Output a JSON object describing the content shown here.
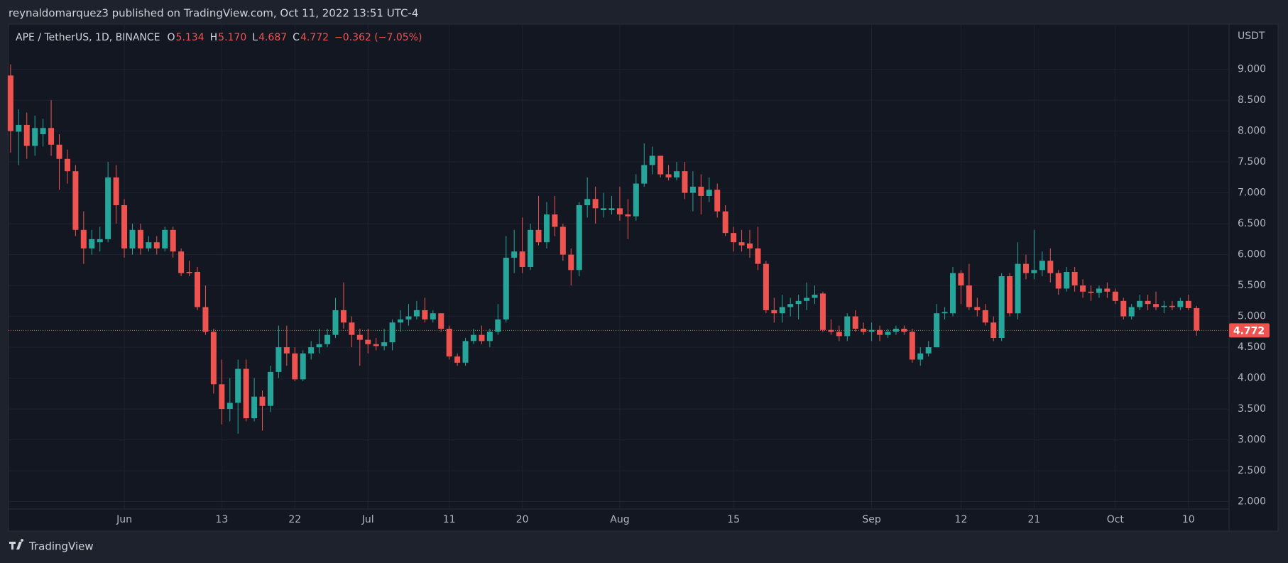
{
  "header": "reynaldomarquez3 published on TradingView.com, Oct 11, 2022 13:51 UTC-4",
  "footer": "TradingView",
  "chart_data": {
    "type": "candlestick",
    "title": "APE / TetherUS, 1D, BINANCE",
    "ohlc_legend": [
      {
        "label": "O",
        "value": "5.134"
      },
      {
        "label": "H",
        "value": "5.170"
      },
      {
        "label": "L",
        "value": "4.687"
      },
      {
        "label": "C",
        "value": "4.772"
      }
    ],
    "change": "−0.362 (−7.05%)",
    "y_unit": "USDT",
    "up_color": "#26a69a",
    "down_color": "#ef5350",
    "grid": true,
    "last_price": {
      "value": 4.772,
      "label": "4.772"
    },
    "xlim": [
      "2022-05-17T18:00Z",
      "2022-10-15T00:00Z"
    ],
    "ylim": [
      1.88,
      9.72
    ],
    "yticks": [
      {
        "value": 2,
        "label": "2.000"
      },
      {
        "value": 2.5,
        "label": "2.500"
      },
      {
        "value": 3,
        "label": "3.000"
      },
      {
        "value": 3.5,
        "label": "3.500"
      },
      {
        "value": 4,
        "label": "4.000"
      },
      {
        "value": 4.5,
        "label": "4.500"
      },
      {
        "value": 5,
        "label": "5.000"
      },
      {
        "value": 5.5,
        "label": "5.500"
      },
      {
        "value": 6,
        "label": "6.000"
      },
      {
        "value": 6.5,
        "label": "6.500"
      },
      {
        "value": 7,
        "label": "7.000"
      },
      {
        "value": 7.5,
        "label": "7.500"
      },
      {
        "value": 8,
        "label": "8.000"
      },
      {
        "value": 8.5,
        "label": "8.500"
      },
      {
        "value": 9,
        "label": "9.000"
      }
    ],
    "xticks": [
      {
        "value": "2022-06-01",
        "label": "Jun"
      },
      {
        "value": "2022-06-13",
        "label": "13"
      },
      {
        "value": "2022-06-22",
        "label": "22"
      },
      {
        "value": "2022-07-01",
        "label": "Jul"
      },
      {
        "value": "2022-07-11",
        "label": "11"
      },
      {
        "value": "2022-07-20",
        "label": "20"
      },
      {
        "value": "2022-08-01",
        "label": "Aug"
      },
      {
        "value": "2022-08-15",
        "label": "15"
      },
      {
        "value": "2022-09-01",
        "label": "Sep"
      },
      {
        "value": "2022-09-12",
        "label": "12"
      },
      {
        "value": "2022-09-21",
        "label": "21"
      },
      {
        "value": "2022-10-01",
        "label": "Oct"
      },
      {
        "value": "2022-10-10",
        "label": "10"
      }
    ],
    "x": [
      "2022-05-18",
      "2022-05-19",
      "2022-05-20",
      "2022-05-21",
      "2022-05-22",
      "2022-05-23",
      "2022-05-24",
      "2022-05-25",
      "2022-05-26",
      "2022-05-27",
      "2022-05-28",
      "2022-05-29",
      "2022-05-30",
      "2022-05-31",
      "2022-06-01",
      "2022-06-02",
      "2022-06-03",
      "2022-06-04",
      "2022-06-05",
      "2022-06-06",
      "2022-06-07",
      "2022-06-08",
      "2022-06-09",
      "2022-06-10",
      "2022-06-11",
      "2022-06-12",
      "2022-06-13",
      "2022-06-14",
      "2022-06-15",
      "2022-06-16",
      "2022-06-17",
      "2022-06-18",
      "2022-06-19",
      "2022-06-20",
      "2022-06-21",
      "2022-06-22",
      "2022-06-23",
      "2022-06-24",
      "2022-06-25",
      "2022-06-26",
      "2022-06-27",
      "2022-06-28",
      "2022-06-29",
      "2022-06-30",
      "2022-07-01",
      "2022-07-02",
      "2022-07-03",
      "2022-07-04",
      "2022-07-05",
      "2022-07-06",
      "2022-07-07",
      "2022-07-08",
      "2022-07-09",
      "2022-07-10",
      "2022-07-11",
      "2022-07-12",
      "2022-07-13",
      "2022-07-14",
      "2022-07-15",
      "2022-07-16",
      "2022-07-17",
      "2022-07-18",
      "2022-07-19",
      "2022-07-20",
      "2022-07-21",
      "2022-07-22",
      "2022-07-23",
      "2022-07-24",
      "2022-07-25",
      "2022-07-26",
      "2022-07-27",
      "2022-07-28",
      "2022-07-29",
      "2022-07-30",
      "2022-07-31",
      "2022-08-01",
      "2022-08-02",
      "2022-08-03",
      "2022-08-04",
      "2022-08-05",
      "2022-08-06",
      "2022-08-07",
      "2022-08-08",
      "2022-08-09",
      "2022-08-10",
      "2022-08-11",
      "2022-08-12",
      "2022-08-13",
      "2022-08-14",
      "2022-08-15",
      "2022-08-16",
      "2022-08-17",
      "2022-08-18",
      "2022-08-19",
      "2022-08-20",
      "2022-08-21",
      "2022-08-22",
      "2022-08-23",
      "2022-08-24",
      "2022-08-25",
      "2022-08-26",
      "2022-08-27",
      "2022-08-28",
      "2022-08-29",
      "2022-08-30",
      "2022-08-31",
      "2022-09-01",
      "2022-09-02",
      "2022-09-03",
      "2022-09-04",
      "2022-09-05",
      "2022-09-06",
      "2022-09-07",
      "2022-09-08",
      "2022-09-09",
      "2022-09-10",
      "2022-09-11",
      "2022-09-12",
      "2022-09-13",
      "2022-09-14",
      "2022-09-15",
      "2022-09-16",
      "2022-09-17",
      "2022-09-18",
      "2022-09-19",
      "2022-09-20",
      "2022-09-21",
      "2022-09-22",
      "2022-09-23",
      "2022-09-24",
      "2022-09-25",
      "2022-09-26",
      "2022-09-27",
      "2022-09-28",
      "2022-09-29",
      "2022-09-30",
      "2022-10-01",
      "2022-10-02",
      "2022-10-03",
      "2022-10-04",
      "2022-10-05",
      "2022-10-06",
      "2022-10-07",
      "2022-10-08",
      "2022-10-09",
      "2022-10-10",
      "2022-10-11"
    ],
    "open": [
      8.9,
      7.99,
      8.1,
      7.76,
      7.95,
      8.05,
      7.78,
      7.55,
      7.35,
      6.4,
      6.1,
      6.2,
      6.25,
      7.25,
      6.8,
      6.1,
      6.4,
      6.1,
      6.2,
      6.1,
      6.4,
      6.05,
      5.72,
      5.72,
      5.15,
      4.75,
      3.9,
      3.5,
      3.6,
      4.15,
      3.35,
      3.7,
      3.55,
      4.1,
      4.5,
      4.4,
      3.98,
      4.4,
      4.5,
      4.55,
      4.7,
      5.1,
      4.9,
      4.7,
      4.62,
      4.55,
      4.52,
      4.58,
      4.9,
      4.95,
      5.0,
      5.1,
      4.95,
      5.05,
      4.8,
      4.35,
      4.25,
      4.6,
      4.7,
      4.6,
      4.75,
      4.95,
      5.95,
      6.05,
      5.8,
      6.4,
      6.2,
      6.65,
      6.45,
      6.0,
      5.75,
      6.8,
      6.9,
      6.72,
      6.72,
      6.75,
      6.65,
      6.62,
      7.15,
      7.45,
      7.6,
      7.3,
      7.25,
      7.35,
      7.0,
      7.1,
      6.95,
      7.05,
      6.7,
      6.35,
      6.2,
      6.18,
      6.1,
      5.85,
      5.1,
      5.05,
      5.15,
      5.2,
      5.25,
      5.3,
      5.37,
      4.78,
      4.75,
      4.68,
      5.0,
      4.8,
      4.75,
      4.78,
      4.7,
      4.75,
      4.8,
      4.75,
      4.3,
      4.4,
      4.5,
      5.05,
      5.05,
      5.7,
      5.5,
      5.15,
      5.1,
      4.9,
      4.65,
      5.65,
      5.05,
      5.85,
      5.7,
      5.75,
      5.9,
      5.7,
      5.45,
      5.72,
      5.5,
      5.4,
      5.38,
      5.45,
      5.4,
      5.25,
      5.0,
      5.15,
      5.25,
      5.2,
      5.15,
      5.17,
      5.15,
      5.25,
      5.134
    ],
    "high": [
      9.08,
      8.35,
      8.3,
      8.25,
      8.2,
      8.5,
      7.95,
      7.7,
      7.45,
      6.7,
      6.4,
      6.45,
      7.5,
      7.45,
      6.9,
      6.5,
      6.5,
      6.3,
      6.3,
      6.45,
      6.45,
      6.1,
      5.9,
      5.8,
      5.5,
      4.8,
      4.3,
      4.0,
      4.3,
      4.3,
      4.0,
      3.8,
      4.2,
      4.85,
      4.85,
      4.5,
      4.45,
      4.6,
      4.8,
      4.8,
      5.3,
      5.55,
      5.0,
      4.8,
      4.8,
      4.65,
      4.8,
      4.95,
      5.1,
      5.2,
      5.25,
      5.3,
      5.1,
      5.05,
      4.85,
      4.4,
      4.65,
      4.8,
      4.85,
      4.8,
      5.2,
      6.3,
      6.4,
      6.6,
      6.5,
      6.95,
      6.85,
      6.95,
      6.5,
      6.1,
      6.85,
      7.25,
      7.1,
      7.0,
      6.95,
      7.1,
      6.9,
      7.3,
      7.8,
      7.75,
      7.6,
      7.45,
      7.5,
      7.5,
      7.35,
      7.3,
      7.25,
      7.15,
      6.8,
      6.45,
      6.4,
      6.4,
      6.45,
      5.9,
      5.3,
      5.35,
      5.3,
      5.35,
      5.55,
      5.5,
      5.4,
      4.95,
      4.85,
      5.05,
      5.1,
      4.9,
      4.9,
      4.85,
      4.8,
      4.85,
      4.85,
      4.8,
      4.5,
      4.6,
      5.2,
      5.15,
      5.8,
      5.75,
      5.85,
      5.3,
      5.2,
      5.0,
      5.7,
      5.7,
      6.2,
      6.0,
      6.4,
      6.05,
      6.1,
      5.75,
      5.8,
      5.8,
      5.6,
      5.5,
      5.5,
      5.55,
      5.45,
      5.3,
      5.2,
      5.35,
      5.35,
      5.4,
      5.25,
      5.25,
      5.3,
      5.35,
      5.17
    ],
    "low": [
      7.65,
      7.45,
      7.55,
      7.6,
      7.75,
      7.6,
      7.05,
      7.15,
      6.3,
      5.85,
      6.0,
      6.05,
      6.2,
      6.5,
      5.95,
      6.0,
      6.0,
      6.05,
      6.0,
      6.05,
      5.95,
      5.65,
      5.65,
      5.1,
      4.7,
      3.75,
      3.25,
      3.3,
      3.1,
      3.3,
      3.3,
      3.15,
      3.45,
      4.0,
      4.2,
      3.95,
      3.95,
      4.3,
      4.4,
      4.5,
      4.65,
      4.8,
      4.5,
      4.2,
      4.4,
      4.45,
      4.45,
      4.45,
      4.75,
      4.85,
      4.95,
      4.9,
      4.9,
      4.75,
      4.3,
      4.2,
      4.2,
      4.55,
      4.55,
      4.5,
      4.7,
      4.9,
      5.7,
      5.7,
      5.75,
      6.15,
      6.1,
      6.3,
      5.9,
      5.5,
      5.65,
      6.6,
      6.5,
      6.6,
      6.65,
      6.55,
      6.25,
      6.55,
      7.1,
      7.3,
      7.25,
      7.2,
      7.2,
      6.9,
      6.7,
      6.65,
      6.85,
      6.6,
      6.3,
      6.05,
      6.05,
      5.95,
      5.75,
      5.05,
      4.9,
      4.9,
      5.0,
      4.95,
      5.1,
      5.2,
      4.75,
      4.7,
      4.6,
      4.6,
      4.75,
      4.7,
      4.6,
      4.6,
      4.65,
      4.7,
      4.7,
      4.25,
      4.2,
      4.35,
      4.5,
      4.95,
      5.0,
      5.2,
      5.1,
      5.0,
      4.85,
      4.6,
      4.6,
      5.0,
      4.95,
      5.6,
      5.6,
      5.65,
      5.55,
      5.35,
      5.4,
      5.4,
      5.3,
      5.25,
      5.3,
      5.3,
      5.2,
      4.95,
      4.95,
      5.1,
      5.1,
      5.1,
      5.05,
      5.1,
      5.1,
      5.1,
      4.687
    ],
    "close": [
      8.0,
      8.1,
      7.76,
      8.05,
      8.05,
      7.78,
      7.55,
      7.35,
      6.4,
      6.1,
      6.25,
      6.25,
      7.25,
      6.8,
      6.1,
      6.4,
      6.1,
      6.2,
      6.1,
      6.4,
      6.05,
      5.7,
      5.7,
      5.15,
      4.75,
      3.9,
      3.5,
      3.6,
      4.15,
      3.35,
      3.7,
      3.55,
      4.1,
      4.5,
      4.4,
      3.98,
      4.4,
      4.5,
      4.55,
      4.7,
      5.1,
      4.9,
      4.7,
      4.62,
      4.55,
      4.52,
      4.58,
      4.9,
      4.95,
      5.0,
      5.1,
      4.95,
      5.05,
      4.8,
      4.35,
      4.25,
      4.6,
      4.7,
      4.6,
      4.75,
      4.95,
      5.95,
      6.05,
      5.8,
      6.4,
      6.2,
      6.65,
      6.45,
      6.0,
      5.75,
      6.8,
      6.9,
      6.75,
      6.75,
      6.75,
      6.65,
      6.62,
      7.15,
      7.45,
      7.6,
      7.3,
      7.25,
      7.35,
      7.0,
      7.1,
      6.95,
      7.05,
      6.7,
      6.35,
      6.2,
      6.15,
      6.1,
      5.85,
      5.1,
      5.05,
      5.15,
      5.2,
      5.25,
      5.3,
      5.35,
      4.78,
      4.75,
      4.68,
      5.0,
      4.8,
      4.75,
      4.78,
      4.7,
      4.75,
      4.8,
      4.75,
      4.3,
      4.4,
      4.5,
      5.05,
      5.07,
      5.7,
      5.5,
      5.15,
      5.1,
      4.9,
      4.65,
      5.65,
      5.05,
      5.85,
      5.7,
      5.75,
      5.9,
      5.7,
      5.45,
      5.72,
      5.5,
      5.4,
      5.38,
      5.45,
      5.4,
      5.25,
      5.0,
      5.15,
      5.25,
      5.2,
      5.15,
      5.17,
      5.15,
      5.25,
      5.134,
      4.772
    ]
  }
}
